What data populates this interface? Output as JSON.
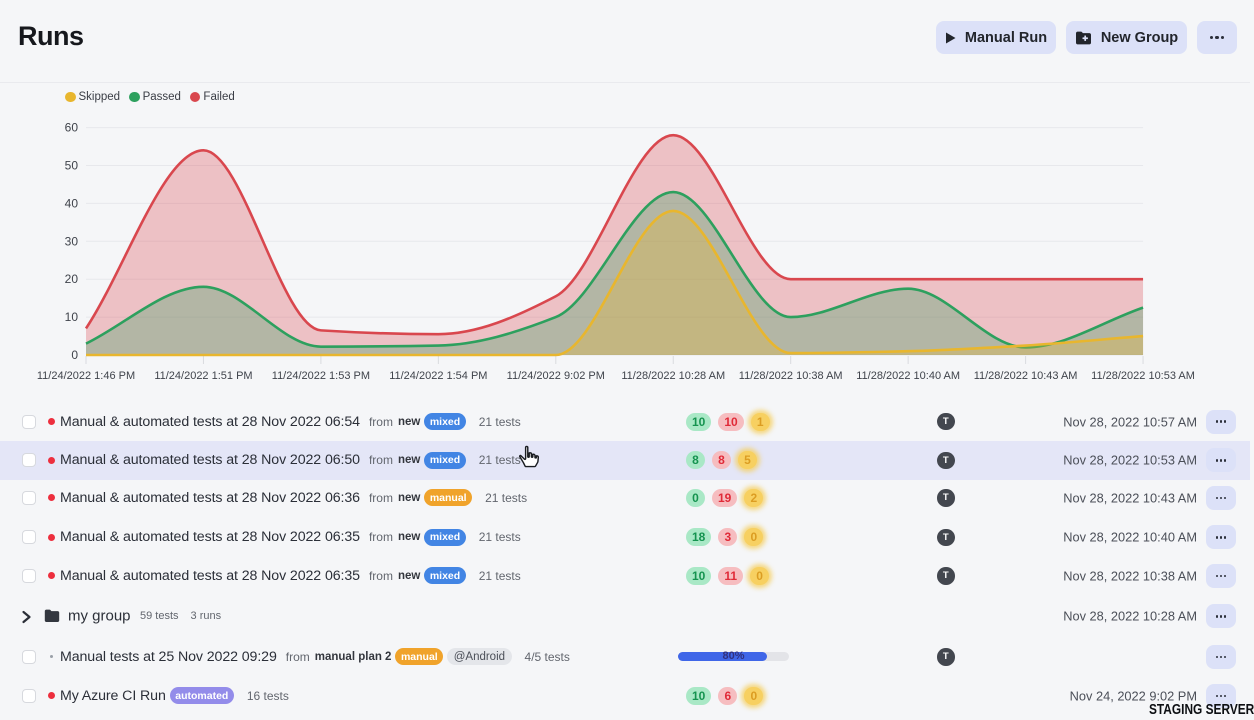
{
  "page": {
    "title": "Runs",
    "watermark": "STAGING SERVER"
  },
  "toolbar": {
    "manual_run_label": "Manual Run",
    "new_group_label": "New Group",
    "more_label": "more-options"
  },
  "chart_data": {
    "type": "area",
    "title": "",
    "xlabel": "",
    "ylabel": "",
    "x_labels": [
      "11/24/2022 1:46 PM",
      "11/24/2022 1:51 PM",
      "11/24/2022 1:53 PM",
      "11/24/2022 1:54 PM",
      "11/24/2022 9:02 PM",
      "11/28/2022 10:28 AM",
      "11/28/2022 10:38 AM",
      "11/28/2022 10:40 AM",
      "11/28/2022 10:43 AM",
      "11/28/2022 10:53 AM"
    ],
    "series": [
      {
        "name": "Skipped",
        "color": "#e8b62e",
        "values": [
          0,
          0,
          0,
          0,
          0,
          38,
          0.5,
          1,
          2.5,
          5
        ]
      },
      {
        "name": "Passed",
        "color": "#2da05e",
        "values": [
          3,
          18,
          2.2,
          2.5,
          10,
          43,
          10,
          17.5,
          2,
          12.5
        ]
      },
      {
        "name": "Failed",
        "color": "#d9474e",
        "values": [
          7,
          54,
          6.5,
          5.5,
          15.5,
          58,
          20,
          20,
          20,
          20
        ]
      }
    ],
    "ylim": [
      0,
      60
    ],
    "yticks": [
      0,
      10,
      20,
      30,
      40,
      50,
      60
    ],
    "fill_opacity": 0.3,
    "grid": true,
    "legend_position": "top-left"
  },
  "runs": [
    {
      "type": "run",
      "highlight": false,
      "status": "failed",
      "title": "Manual & automated tests at 28 Nov 2022 06:54",
      "from_label": "from",
      "from": "new",
      "tags": [
        {
          "text": "mixed",
          "style": "blue"
        }
      ],
      "tests": "21 tests",
      "counts": [
        {
          "value": "10",
          "kind": "passed"
        },
        {
          "value": "10",
          "kind": "failed"
        },
        {
          "value": "1",
          "kind": "skipped"
        }
      ],
      "avatar": "T",
      "date": "Nov 28, 2022 10:57 AM"
    },
    {
      "type": "run",
      "highlight": true,
      "status": "failed",
      "title": "Manual & automated tests at 28 Nov 2022 06:50",
      "from_label": "from",
      "from": "new",
      "tags": [
        {
          "text": "mixed",
          "style": "blue"
        }
      ],
      "tests": "21 tests",
      "counts": [
        {
          "value": "8",
          "kind": "passed"
        },
        {
          "value": "8",
          "kind": "failed"
        },
        {
          "value": "5",
          "kind": "skipped"
        }
      ],
      "avatar": "T",
      "date": "Nov 28, 2022 10:53 AM"
    },
    {
      "type": "run",
      "highlight": false,
      "status": "failed",
      "title": "Manual & automated tests at 28 Nov 2022 06:36",
      "from_label": "from",
      "from": "new",
      "tags": [
        {
          "text": "manual",
          "style": "orange"
        }
      ],
      "tests": "21 tests",
      "counts": [
        {
          "value": "0",
          "kind": "passed"
        },
        {
          "value": "19",
          "kind": "failed"
        },
        {
          "value": "2",
          "kind": "skipped"
        }
      ],
      "avatar": "T",
      "date": "Nov 28, 2022 10:43 AM"
    },
    {
      "type": "run",
      "highlight": false,
      "status": "failed",
      "title": "Manual & automated tests at 28 Nov 2022 06:35",
      "from_label": "from",
      "from": "new",
      "tags": [
        {
          "text": "mixed",
          "style": "blue"
        }
      ],
      "tests": "21 tests",
      "counts": [
        {
          "value": "18",
          "kind": "passed"
        },
        {
          "value": "3",
          "kind": "failed"
        },
        {
          "value": "0",
          "kind": "skipped"
        }
      ],
      "avatar": "T",
      "date": "Nov 28, 2022 10:40 AM"
    },
    {
      "type": "run",
      "highlight": false,
      "status": "failed",
      "title": "Manual & automated tests at 28 Nov 2022 06:35",
      "from_label": "from",
      "from": "new",
      "tags": [
        {
          "text": "mixed",
          "style": "blue"
        }
      ],
      "tests": "21 tests",
      "counts": [
        {
          "value": "10",
          "kind": "passed"
        },
        {
          "value": "11",
          "kind": "failed"
        },
        {
          "value": "0",
          "kind": "skipped"
        }
      ],
      "avatar": "T",
      "date": "Nov 28, 2022 10:38 AM"
    },
    {
      "type": "group",
      "name": "my group",
      "tests": "59 tests",
      "runs": "3 runs",
      "date": "Nov 28, 2022 10:28 AM"
    },
    {
      "type": "run",
      "highlight": false,
      "status": "none",
      "title": "Manual tests at 25 Nov 2022 09:29",
      "from_label": "from",
      "from": "manual plan 2",
      "tags": [
        {
          "text": "manual",
          "style": "orange"
        },
        {
          "text": "@Android",
          "style": "gray"
        }
      ],
      "tests": "4/5 tests",
      "progress": "80%",
      "avatar": "T",
      "date": ""
    },
    {
      "type": "run",
      "highlight": false,
      "status": "failed",
      "no_checkbox_gap": false,
      "title": "My Azure CI Run",
      "tags": [
        {
          "text": "automated",
          "style": "purple"
        }
      ],
      "tests": "16 tests",
      "counts": [
        {
          "value": "10",
          "kind": "passed"
        },
        {
          "value": "6",
          "kind": "failed"
        },
        {
          "value": "0",
          "kind": "skipped"
        }
      ],
      "date": "Nov 24, 2022 9:02 PM"
    }
  ]
}
